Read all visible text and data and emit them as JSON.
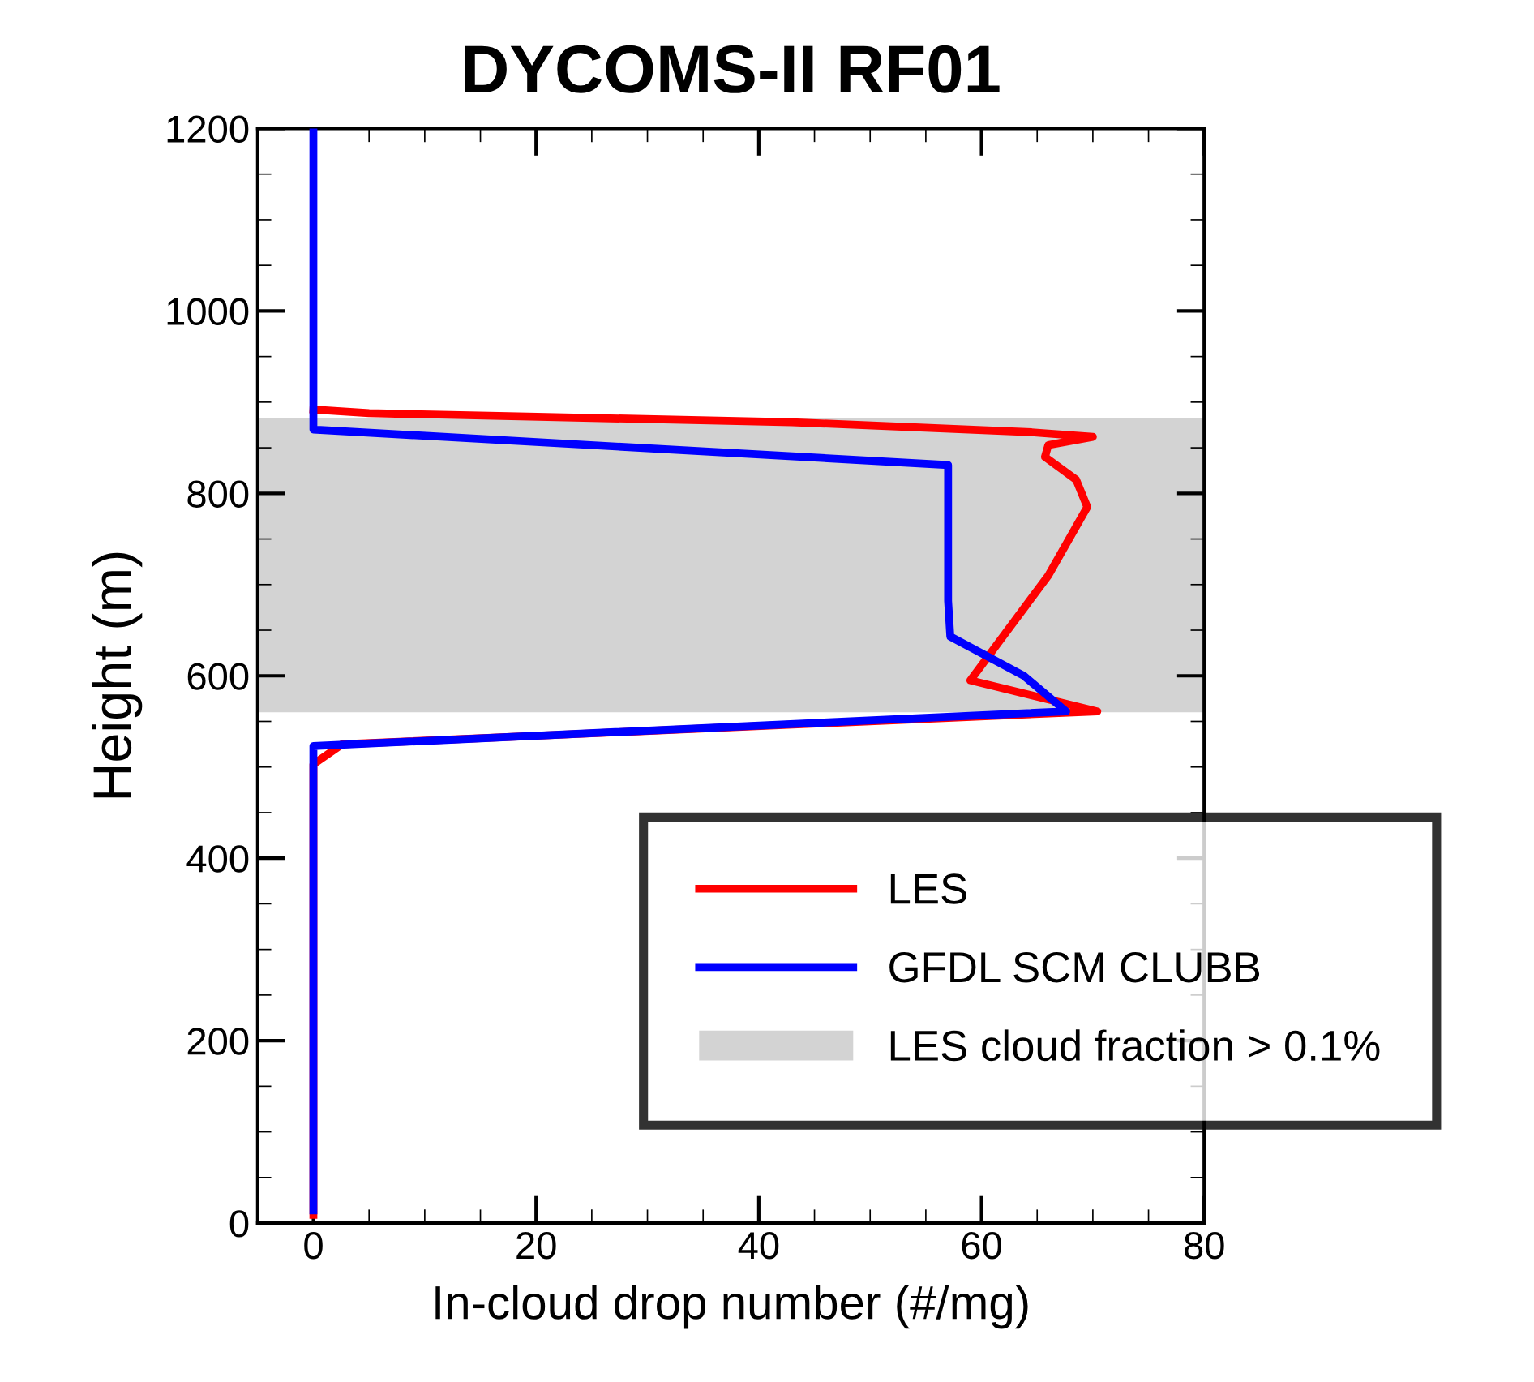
{
  "chart_data": {
    "type": "line",
    "title": "DYCOMS-II RF01",
    "xlabel": "In-cloud drop number (#/mg)",
    "ylabel": "Height (m)",
    "series": [
      {
        "name": "LES",
        "color": "#ff0000",
        "x": [
          0,
          0,
          2.6,
          70.4,
          59,
          66,
          69.5,
          68.5,
          65.7,
          66,
          70,
          64.5,
          43,
          5,
          0
        ],
        "values": [
          9,
          503,
          525,
          561,
          595,
          710,
          785,
          815,
          840,
          853,
          862,
          867,
          878,
          888,
          892
        ]
      },
      {
        "name": "GFDL SCM CLUBB",
        "color": "#0000ff",
        "x": [
          0,
          0,
          67.6,
          63.8,
          57.2,
          57,
          57,
          0,
          0
        ],
        "values": [
          14,
          523,
          561,
          600,
          643,
          682,
          831,
          870,
          1200
        ]
      }
    ],
    "bands": [
      {
        "axis": "y",
        "from": 560,
        "to": 883,
        "label": "LES cloud fraction > 0.1%",
        "color": "#d3d3d3"
      }
    ],
    "xlim": [
      -5,
      80
    ],
    "xticks": [
      0,
      20,
      40,
      60,
      80
    ],
    "ylim": [
      0,
      1200
    ],
    "yticks": [
      0,
      200,
      400,
      600,
      800,
      1000,
      1200
    ],
    "grid": false,
    "legend": "bottom right",
    "line_style": "solid"
  }
}
